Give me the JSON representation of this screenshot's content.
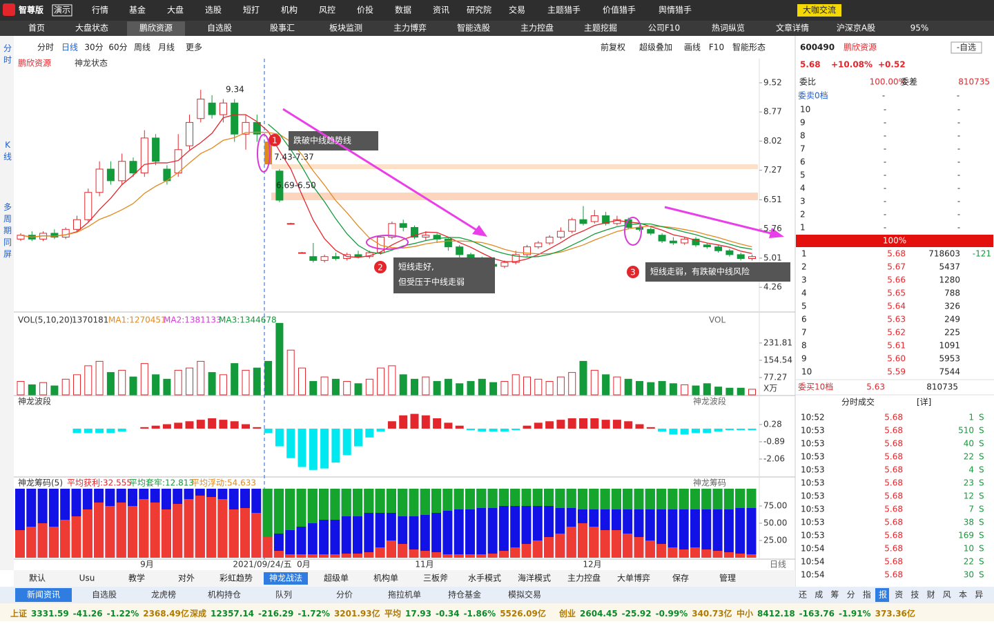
{
  "header": {
    "logo": "智尊版",
    "badge": "演示",
    "menu": [
      "行情",
      "基金",
      "大盘",
      "选股",
      "短打",
      "机构",
      "风控",
      "价投",
      "数据",
      "资讯",
      "研究院",
      "交易",
      "主题猎手",
      "价值猎手",
      "舆情猎手"
    ],
    "exchange": "大咖交流"
  },
  "tabs": {
    "items": [
      "首页",
      "大盘状态",
      "鹏欣资源",
      "自选股",
      "股事汇",
      "板块监测",
      "主力博弈",
      "智能选股",
      "主力控盘",
      "主题挖掘",
      "公司F10",
      "热词纵览",
      "文章详情",
      "沪深京A股"
    ],
    "zoom": "95%"
  },
  "side": [
    "分时",
    "K线",
    "多周期同屏"
  ],
  "toolbar": {
    "left": [
      "分时",
      "日线",
      "30分",
      "60分",
      "周线",
      "月线",
      "更多"
    ],
    "right": [
      "前复权",
      "超级叠加",
      "画线",
      "F10",
      "智能形态"
    ]
  },
  "kline": {
    "name": "鹏欣资源",
    "state": "神龙状态",
    "ylim": [
      3.66,
      10.14
    ],
    "yticks": [
      9.52,
      8.77,
      8.02,
      7.27,
      6.51,
      5.76,
      5.01,
      4.26
    ],
    "labels": [
      "9.34",
      "7.43-7.37",
      "6.69-6.50"
    ],
    "candles": [
      [
        5.5,
        5.6,
        5.65,
        5.45
      ],
      [
        5.6,
        5.5,
        5.7,
        5.45
      ],
      [
        5.5,
        5.65,
        5.7,
        5.45
      ],
      [
        5.65,
        5.55,
        5.75,
        5.5
      ],
      [
        5.55,
        5.75,
        5.8,
        5.5
      ],
      [
        5.75,
        6,
        6.1,
        5.7
      ],
      [
        6,
        6.7,
        6.8,
        5.95
      ],
      [
        6.7,
        7.3,
        7.5,
        6.6
      ],
      [
        7.3,
        7,
        7.5,
        6.9
      ],
      [
        7,
        7.5,
        7.7,
        6.9
      ],
      [
        7.5,
        7.2,
        7.6,
        7.1
      ],
      [
        7.2,
        8.1,
        8.3,
        7.1
      ],
      [
        8.1,
        7.5,
        8.2,
        7.4
      ],
      [
        7.3,
        7,
        7.4,
        6.9
      ],
      [
        7.2,
        7.8,
        8.2,
        7.1
      ],
      [
        7.9,
        8.5,
        8.7,
        7.8
      ],
      [
        8.6,
        9.1,
        9.34,
        8.5
      ],
      [
        9,
        8.7,
        9.2,
        8.6
      ],
      [
        8.7,
        9,
        9.1,
        8.5
      ],
      [
        9,
        8.2,
        9.1,
        8
      ],
      [
        8.2,
        8.5,
        8.7,
        7.8
      ],
      [
        8.5,
        8.2,
        8.7,
        8
      ],
      [
        8,
        7.43,
        8.05,
        7.37
      ],
      [
        7.25,
        6.5,
        7.3,
        6.45
      ],
      [
        5.9,
        5.9,
        5.92,
        5.88
      ],
      [
        5.15,
        5.15,
        5.17,
        5.13
      ],
      [
        5.05,
        4.95,
        5.4,
        4.9
      ],
      [
        4.95,
        5.05,
        5.1,
        4.9
      ],
      [
        5.05,
        5,
        5.15,
        4.95
      ],
      [
        5,
        5.1,
        5.15,
        4.95
      ],
      [
        5.1,
        5.05,
        5.2,
        5
      ],
      [
        5.05,
        5.15,
        5.2,
        5
      ],
      [
        5.15,
        5.55,
        5.6,
        5.1
      ],
      [
        5.55,
        5.9,
        5.95,
        5.5
      ],
      [
        5.9,
        5.8,
        6,
        5.7
      ],
      [
        5.8,
        5.55,
        5.85,
        5.5
      ],
      [
        5.55,
        5.6,
        5.7,
        5.45
      ],
      [
        5.6,
        5.5,
        5.65,
        5.4
      ],
      [
        5.5,
        5.3,
        5.55,
        5.2
      ],
      [
        5.3,
        5.1,
        5.35,
        5
      ],
      [
        5.1,
        4.95,
        5.15,
        4.9
      ],
      [
        5,
        4.85,
        5.05,
        4.8
      ],
      [
        4.85,
        4.8,
        4.9,
        4.75
      ],
      [
        4.8,
        4.9,
        4.95,
        4.75
      ],
      [
        4.9,
        5.1,
        5.2,
        4.85
      ],
      [
        5.1,
        5.3,
        5.35,
        5.05
      ],
      [
        5.3,
        5.4,
        5.45,
        5.25
      ],
      [
        5.4,
        5.55,
        5.6,
        5.35
      ],
      [
        5.55,
        5.7,
        5.8,
        5.5
      ],
      [
        5.7,
        6,
        6.05,
        5.65
      ],
      [
        6,
        5.9,
        6.35,
        5.85
      ],
      [
        5.95,
        6.1,
        6.25,
        5.9
      ],
      [
        6.1,
        5.9,
        6.2,
        5.85
      ],
      [
        5.9,
        6,
        6.1,
        5.85
      ],
      [
        6,
        5.8,
        6.05,
        5.75
      ],
      [
        5.8,
        5.75,
        5.85,
        5.7
      ],
      [
        5.75,
        5.65,
        5.8,
        5.6
      ],
      [
        5.6,
        5.45,
        5.65,
        5.4
      ],
      [
        5.45,
        5.4,
        5.55,
        5.35
      ],
      [
        5.4,
        5.5,
        5.55,
        5.35
      ],
      [
        5.5,
        5.35,
        5.55,
        5.3
      ],
      [
        5.35,
        5.3,
        5.4,
        5.25
      ],
      [
        5.3,
        5.2,
        5.35,
        5.15
      ],
      [
        5.2,
        5.1,
        5.25,
        5.05
      ],
      [
        5.1,
        5,
        5.15,
        4.95
      ],
      [
        5,
        5.05,
        5.1,
        4.95
      ]
    ],
    "callouts": [
      {
        "num": "1",
        "lines": [
          "跌破中线趋势线"
        ]
      },
      {
        "num": "2",
        "lines": [
          "短线走好,",
          "但受压于中线走弱"
        ]
      },
      {
        "num": "3",
        "lines": [
          "短线走弱，有跌破中线风险"
        ]
      }
    ]
  },
  "volume": {
    "title": "VOL(5,10,20)",
    "value": "1370181",
    "ma": [
      "MA1:1270451",
      "MA2:1381133",
      "MA3:1344678"
    ],
    "tag": "VOL",
    "unit": "X万",
    "ylim": [
      0,
      355
    ],
    "yticks": [
      231.81,
      154.54,
      77.27
    ],
    "values": [
      60,
      45,
      55,
      40,
      70,
      90,
      130,
      150,
      100,
      110,
      80,
      140,
      90,
      70,
      110,
      120,
      150,
      100,
      90,
      140,
      110,
      120,
      150,
      320,
      200,
      120,
      60,
      80,
      70,
      60,
      50,
      70,
      120,
      130,
      90,
      70,
      80,
      60,
      70,
      50,
      60,
      70,
      55,
      60,
      90,
      80,
      70,
      60,
      80,
      100,
      150,
      110,
      90,
      80,
      70,
      60,
      55,
      60,
      50,
      45,
      40,
      50,
      35,
      30,
      30,
      25
    ]
  },
  "wave": {
    "title": "神龙波段",
    "ylim": [
      -3.23,
      2.15
    ],
    "yticks": [
      0.28,
      -0.89,
      -2.06
    ],
    "values": [
      0,
      0,
      0,
      0,
      0,
      -0.3,
      -0.3,
      -0.3,
      -0.3,
      -0.2,
      0,
      0.1,
      0.2,
      0.3,
      0.4,
      0.5,
      0.6,
      0.7,
      0.6,
      0.5,
      0.3,
      0.1,
      -0.3,
      -1.2,
      -2,
      -2.6,
      -2.8,
      -2.7,
      -2.3,
      -1.8,
      -1.2,
      -0.6,
      -0.2,
      0.5,
      0.9,
      1,
      0.9,
      0.7,
      0.4,
      0.2,
      -0.1,
      -0.2,
      -0.2,
      -0.2,
      -0.1,
      0.2,
      0.4,
      0.5,
      0.6,
      0.7,
      0.7,
      0.7,
      0.6,
      0.6,
      0.5,
      0.3,
      0.1,
      -0.2,
      -0.4,
      -0.4,
      -0.3,
      -0.3,
      -0.2,
      -0.1,
      -0.1,
      -0.1
    ]
  },
  "chips": {
    "title": "神龙筹码(5)",
    "stats": [
      "平均获利:32.555",
      "平均套牢:12.813",
      "平均浮动:54.633"
    ],
    "tag": "神龙筹码",
    "ylim": [
      0,
      100
    ],
    "yticks": [
      {
        "value": 75,
        "label": "75.00"
      },
      {
        "value": 50,
        "label": "50.00"
      },
      {
        "value": 25,
        "label": "25.00"
      }
    ],
    "profit": [
      40,
      45,
      50,
      45,
      55,
      60,
      70,
      80,
      75,
      80,
      75,
      85,
      80,
      70,
      78,
      85,
      90,
      88,
      85,
      70,
      72,
      65,
      40,
      10,
      5,
      5,
      5,
      5,
      5,
      6,
      6,
      8,
      15,
      25,
      20,
      12,
      10,
      8,
      5,
      5,
      5,
      5,
      6,
      10,
      15,
      20,
      25,
      30,
      35,
      45,
      50,
      45,
      40,
      40,
      35,
      30,
      25,
      20,
      15,
      12,
      15,
      12,
      10,
      8,
      6,
      5
    ],
    "trapped": [
      null,
      null,
      null,
      null,
      null,
      null,
      null,
      null,
      null,
      null,
      null,
      null,
      null,
      null,
      null,
      null,
      null,
      null,
      null,
      null,
      null,
      null,
      70,
      65,
      60,
      55,
      50,
      45,
      45,
      40,
      40,
      35,
      35,
      35,
      40,
      40,
      38,
      35,
      32,
      30,
      30,
      28,
      28,
      25,
      25,
      25,
      25,
      25,
      28,
      28,
      30,
      30,
      30,
      30,
      30,
      30,
      30,
      30,
      30,
      30,
      30,
      30,
      30,
      30,
      28,
      28
    ]
  },
  "xaxis": {
    "labels": [
      "9月",
      "2021/09/24/五",
      "0月",
      "11月",
      "12月"
    ],
    "mode": "日线"
  },
  "bottom_tabs": [
    "默认",
    "Usu",
    "教学",
    "对外",
    "彩虹趋势",
    "神龙战法",
    "超级单",
    "机构单",
    "三板斧",
    "水手模式",
    "海洋模式",
    "主力控盘",
    "大单博弈",
    "保存",
    "管理"
  ],
  "news_tabs": [
    "新闻资讯",
    "自选股",
    "龙虎榜",
    "机构持仓",
    "队列",
    "分价",
    "拖拉机单",
    "持仓基金",
    "模拟交易"
  ],
  "quick": [
    "还",
    "成",
    "筹",
    "分",
    "指",
    "报",
    "资",
    "技",
    "财",
    "风",
    "本",
    "异"
  ],
  "quote": {
    "code": "600490",
    "name": "鹏欣资源",
    "add": "-自选",
    "price": "5.68",
    "pct": "+10.08%",
    "change": "+0.52",
    "ratio_label": "委比",
    "ratio": "100.00%",
    "diff_label": "委差",
    "diff": "810735",
    "ask_title": "委卖0档",
    "asks": [
      [
        "10",
        "-",
        "-"
      ],
      [
        "9",
        "-",
        "-"
      ],
      [
        "8",
        "-",
        "-"
      ],
      [
        "7",
        "-",
        "-"
      ],
      [
        "6",
        "-",
        "-"
      ],
      [
        "5",
        "-",
        "-"
      ],
      [
        "4",
        "-",
        "-"
      ],
      [
        "3",
        "-",
        "-"
      ],
      [
        "2",
        "-",
        "-"
      ],
      [
        "1",
        "-",
        "-"
      ]
    ],
    "bar": "100%",
    "bids": [
      [
        "1",
        "5.68",
        "718603",
        "-121"
      ],
      [
        "2",
        "5.67",
        "5437"
      ],
      [
        "3",
        "5.66",
        "1280"
      ],
      [
        "4",
        "5.65",
        "788"
      ],
      [
        "5",
        "5.64",
        "326"
      ],
      [
        "6",
        "5.63",
        "249"
      ],
      [
        "7",
        "5.62",
        "225"
      ],
      [
        "8",
        "5.61",
        "1091"
      ],
      [
        "9",
        "5.60",
        "5953"
      ],
      [
        "10",
        "5.59",
        "7544"
      ]
    ],
    "bid_title": "委买10档",
    "bid_price": "5.63",
    "bid_total": "810735"
  },
  "trades": {
    "title": "分时成交",
    "detail": "[详]",
    "rows": [
      [
        "10:52",
        "5.68",
        "1",
        "S"
      ],
      [
        "10:53",
        "5.68",
        "510",
        "S"
      ],
      [
        "10:53",
        "5.68",
        "40",
        "S"
      ],
      [
        "10:53",
        "5.68",
        "22",
        "S"
      ],
      [
        "10:53",
        "5.68",
        "4",
        "S"
      ],
      [
        "10:53",
        "5.68",
        "23",
        "S"
      ],
      [
        "10:53",
        "5.68",
        "12",
        "S"
      ],
      [
        "10:53",
        "5.68",
        "7",
        "S"
      ],
      [
        "10:53",
        "5.68",
        "38",
        "S"
      ],
      [
        "10:53",
        "5.68",
        "169",
        "S"
      ],
      [
        "10:54",
        "5.68",
        "10",
        "S"
      ],
      [
        "10:54",
        "5.68",
        "22",
        "S"
      ],
      [
        "10:54",
        "5.68",
        "30",
        "S"
      ]
    ]
  },
  "indices": [
    [
      "上证",
      "3331.59",
      "-41.26",
      "-1.22%",
      "2368.49亿"
    ],
    [
      "深成",
      "12357.14",
      "-216.29",
      "-1.72%",
      "3201.93亿"
    ],
    [
      "平均",
      "17.93",
      "-0.34",
      "-1.86%",
      "5526.09亿"
    ],
    [
      "创业",
      "2604.45",
      "-25.92",
      "-0.99%",
      "340.73亿"
    ],
    [
      "中小",
      "8412.18",
      "-163.76",
      "-1.91%",
      "373.36亿"
    ]
  ]
}
